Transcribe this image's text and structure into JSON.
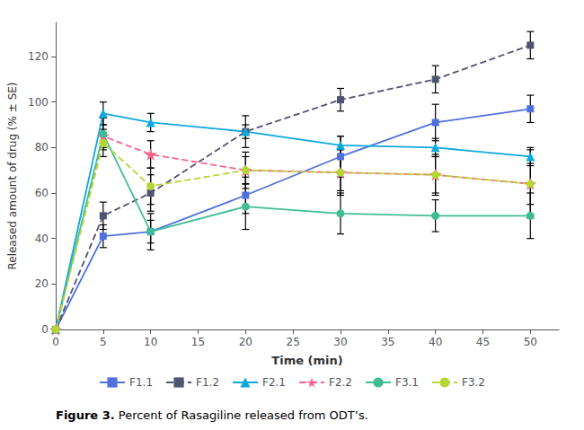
{
  "chart_data": {
    "type": "line",
    "x": [
      0,
      5,
      10,
      20,
      30,
      40,
      50
    ],
    "x_label": "Time (min)",
    "y_label": "Released amount of drug (% ± SE)",
    "xlim": [
      0,
      53
    ],
    "xticks": [
      0,
      5,
      10,
      15,
      20,
      25,
      30,
      35,
      40,
      45,
      50
    ],
    "ylim": [
      0,
      135
    ],
    "yticks": [
      0,
      20,
      40,
      60,
      80,
      100,
      120
    ],
    "grid": false,
    "legend": "bottom",
    "annotations": [
      "Figure 3.",
      "Percent of Rasagiline released from ODT’s."
    ],
    "series": [
      {
        "name": "F1.1",
        "values": [
          0,
          41,
          43,
          59,
          76,
          91,
          97
        ],
        "yerr": [
          0,
          5,
          5,
          8,
          9,
          8,
          6
        ],
        "marker": "square",
        "line_style": "solid"
      },
      {
        "name": "F1.2",
        "values": [
          0,
          50,
          60,
          87,
          101,
          110,
          125
        ],
        "yerr": [
          0,
          6,
          8,
          7,
          5,
          6,
          6
        ],
        "marker": "square",
        "line_style": "dashed"
      },
      {
        "name": "F2.1",
        "values": [
          0,
          95,
          91,
          87,
          81,
          80,
          76
        ],
        "yerr": [
          0,
          5,
          4,
          3,
          4,
          4,
          4
        ],
        "marker": "triangle",
        "line_style": "solid"
      },
      {
        "name": "F2.2",
        "values": [
          0,
          85,
          77,
          70,
          69,
          68,
          64
        ],
        "yerr": [
          0,
          5,
          6,
          6,
          8,
          8,
          9
        ],
        "marker": "star",
        "line_style": "dashed"
      },
      {
        "name": "F3.1",
        "values": [
          0,
          86,
          43,
          54,
          51,
          50,
          50
        ],
        "yerr": [
          0,
          7,
          8,
          10,
          9,
          7,
          10
        ],
        "marker": "circle",
        "line_style": "solid"
      },
      {
        "name": "F3.2",
        "values": [
          0,
          82,
          63,
          70,
          69,
          68,
          64
        ],
        "yerr": [
          0,
          6,
          8,
          8,
          10,
          9,
          15
        ],
        "marker": "circle",
        "line_style": "dashed"
      }
    ]
  }
}
